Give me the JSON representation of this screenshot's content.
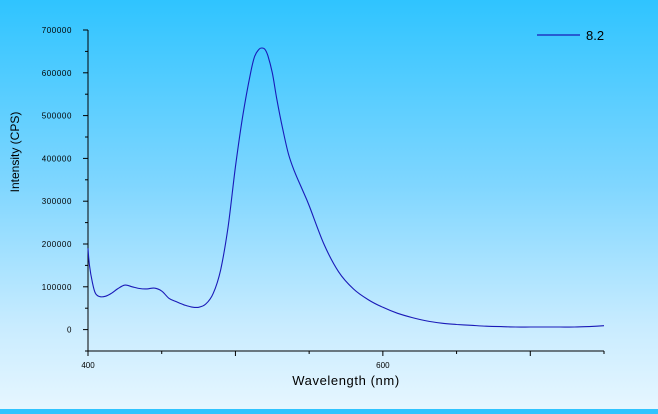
{
  "chart_data": {
    "type": "line",
    "xlabel": "Wavelength (nm)",
    "ylabel": "Intensity (CPS)",
    "xlim": [
      400,
      750
    ],
    "ylim": [
      -50000,
      700000
    ],
    "x_ticks": [
      400,
      600
    ],
    "x_tick_labels": [
      "400",
      "600"
    ],
    "y_ticks": [
      0,
      100000,
      200000,
      300000,
      400000,
      500000,
      600000,
      700000
    ],
    "y_tick_labels": [
      "0",
      "100000",
      "200000",
      "300000",
      "400000",
      "500000",
      "600000",
      "700000"
    ],
    "legend_position": "top-right",
    "grid": false,
    "series": [
      {
        "name": "8.2",
        "color": "#1a1ab8",
        "x": [
          400,
          401,
          403,
          405,
          408,
          412,
          416,
          420,
          425,
          430,
          435,
          440,
          445,
          450,
          455,
          460,
          465,
          470,
          475,
          480,
          485,
          490,
          495,
          500,
          505,
          510,
          513,
          516,
          518,
          520,
          522,
          525,
          528,
          532,
          536,
          540,
          545,
          550,
          560,
          570,
          580,
          590,
          600,
          610,
          620,
          630,
          640,
          650,
          660,
          670,
          680,
          690,
          700,
          710,
          720,
          730,
          740,
          750
        ],
        "y": [
          190000,
          150000,
          110000,
          85000,
          77000,
          78000,
          85000,
          95000,
          104000,
          100000,
          96000,
          95000,
          97000,
          90000,
          73000,
          65000,
          58000,
          53000,
          52000,
          60000,
          85000,
          140000,
          240000,
          380000,
          500000,
          595000,
          638000,
          655000,
          658000,
          655000,
          640000,
          600000,
          540000,
          470000,
          410000,
          370000,
          330000,
          290000,
          200000,
          135000,
          95000,
          70000,
          52000,
          38000,
          28000,
          20000,
          15000,
          12000,
          10000,
          8000,
          7000,
          6000,
          6000,
          6000,
          6000,
          6000,
          7000,
          9000
        ]
      }
    ]
  }
}
